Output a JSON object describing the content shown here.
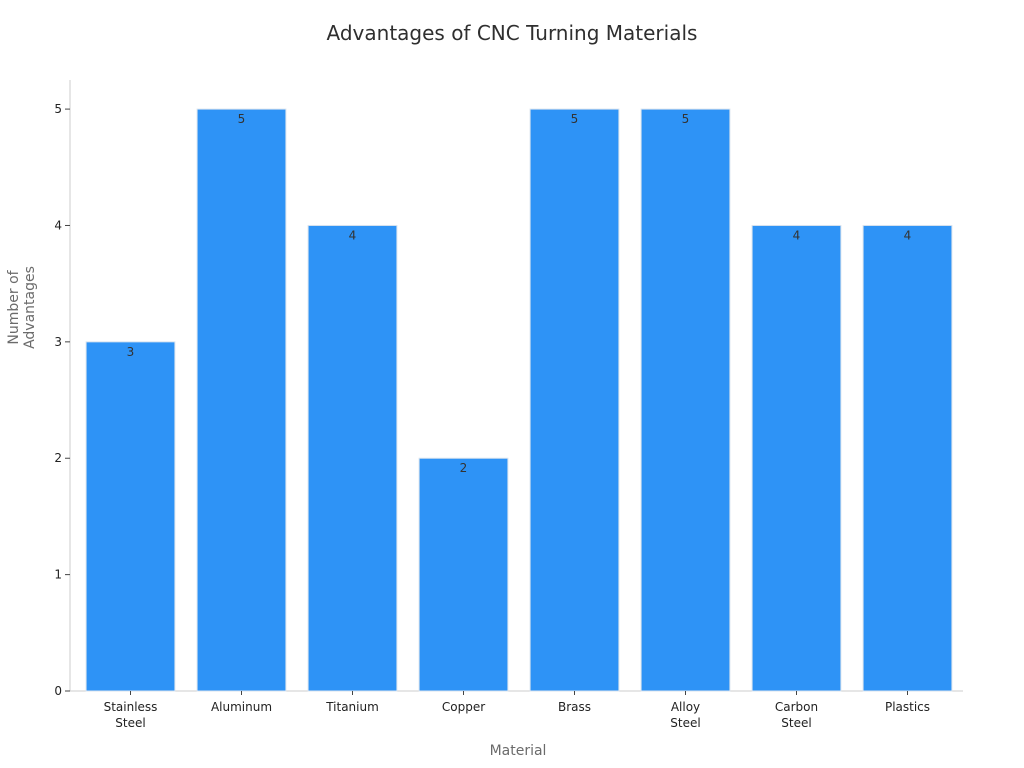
{
  "chart_data": {
    "type": "bar",
    "title": "Advantages of CNC Turning Materials",
    "xlabel": "Material",
    "ylabel": "Number of Advantages",
    "ylabel_lines": [
      "Number of",
      "Advantages"
    ],
    "categories": [
      "Stainless Steel",
      "Aluminum",
      "Titanium",
      "Copper",
      "Brass",
      "Alloy Steel",
      "Carbon Steel",
      "Plastics"
    ],
    "category_lines": [
      [
        "Stainless",
        "Steel"
      ],
      [
        "Aluminum"
      ],
      [
        "Titanium"
      ],
      [
        "Copper"
      ],
      [
        "Brass"
      ],
      [
        "Alloy",
        "Steel"
      ],
      [
        "Carbon",
        "Steel"
      ],
      [
        "Plastics"
      ]
    ],
    "values": [
      3,
      5,
      4,
      2,
      5,
      5,
      4,
      4
    ],
    "ylim": [
      0,
      5.25
    ],
    "yticks": [
      0,
      1,
      2,
      3,
      4,
      5
    ],
    "bar_color": "#2e93f6",
    "grid": false,
    "legend": "none"
  }
}
